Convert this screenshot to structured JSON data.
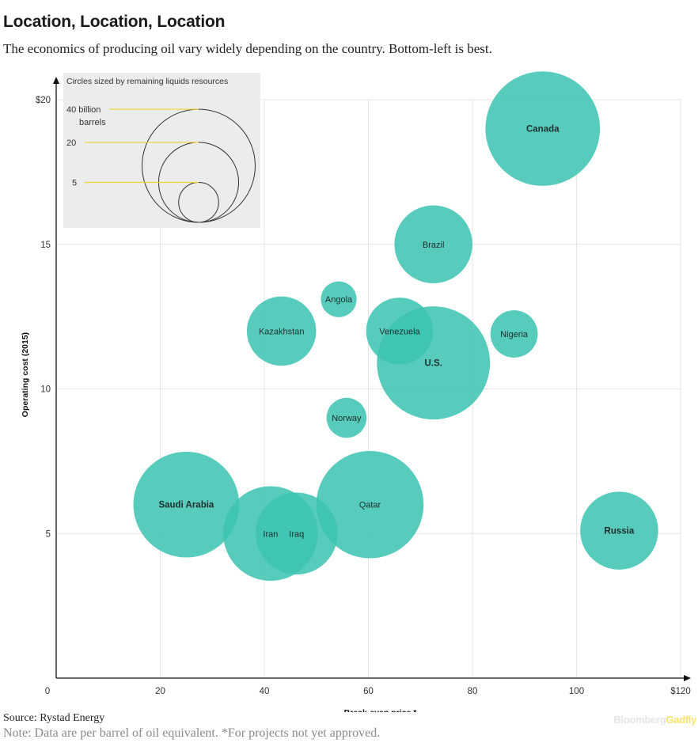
{
  "header": {
    "title": "Location, Location, Location",
    "subtitle": "The economics of producing oil vary widely depending on the country. Bottom-left is best."
  },
  "footer": {
    "source": "Source: Rystad Energy",
    "note": "Note: Data are per barrel of oil equivalent. *For projects not yet approved.",
    "brand_part1": "Bloomberg",
    "brand_part2": "Gadfly"
  },
  "colors": {
    "bubble": "#3cc4b1",
    "grid": "#e6e6e6",
    "axis": "#111111",
    "legend_bg": "#ebecec",
    "legend_leader": "#f2d230"
  },
  "legend": {
    "title": "Circles sized by remaining liquids resources",
    "items": [
      {
        "label": "40 billion",
        "label2": "barrels",
        "value": 40
      },
      {
        "label": "20",
        "value": 20
      },
      {
        "label": "5",
        "value": 5
      }
    ]
  },
  "chart_data": {
    "type": "scatter",
    "title": "Location, Location, Location",
    "xlabel": "Break-even price *",
    "ylabel": "Operating cost (2015)",
    "xlim": [
      0,
      120
    ],
    "ylim": [
      0,
      20
    ],
    "xticks": [
      0,
      20,
      40,
      60,
      80,
      100,
      120
    ],
    "xtick_labels": [
      "0",
      "20",
      "40",
      "60",
      "80",
      "100",
      "$120"
    ],
    "yticks": [
      5,
      10,
      15,
      20
    ],
    "ytick_labels": [
      "5",
      "10",
      "15",
      "$20"
    ],
    "grid": true,
    "size_unit": "billion barrels",
    "points": [
      {
        "label": "Canada",
        "x": 93.5,
        "y": 19.0,
        "size": 41,
        "bold": true
      },
      {
        "label": "Brazil",
        "x": 72.5,
        "y": 15.0,
        "size": 19,
        "bold": false
      },
      {
        "label": "Angola",
        "x": 54.3,
        "y": 13.1,
        "size": 4,
        "bold": false
      },
      {
        "label": "Kazakhstan",
        "x": 43.3,
        "y": 12.0,
        "size": 15,
        "bold": false
      },
      {
        "label": "Venezuela",
        "x": 66.0,
        "y": 12.0,
        "size": 14,
        "bold": false
      },
      {
        "label": "U.S.",
        "x": 72.5,
        "y": 10.9,
        "size": 40,
        "bold": true
      },
      {
        "label": "Nigeria",
        "x": 88.0,
        "y": 11.9,
        "size": 7,
        "bold": false
      },
      {
        "label": "Norway",
        "x": 55.8,
        "y": 9.0,
        "size": 5,
        "bold": false
      },
      {
        "label": "Saudi Arabia",
        "x": 25.0,
        "y": 6.0,
        "size": 35,
        "bold": true
      },
      {
        "label": "Iran",
        "x": 41.2,
        "y": 5.0,
        "size": 28,
        "bold": false
      },
      {
        "label": "Iraq",
        "x": 46.2,
        "y": 5.0,
        "size": 21,
        "bold": false
      },
      {
        "label": "Qatar",
        "x": 60.3,
        "y": 6.0,
        "size": 36,
        "bold": false
      },
      {
        "label": "Russia",
        "x": 108.2,
        "y": 5.1,
        "size": 19,
        "bold": true
      }
    ]
  }
}
